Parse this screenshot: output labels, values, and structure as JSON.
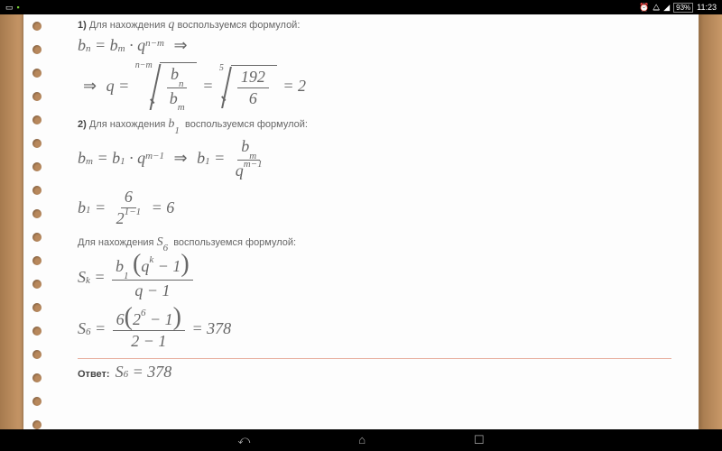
{
  "status": {
    "time": "11:23",
    "battery": "93%"
  },
  "colors": {
    "wood": "#b8885c",
    "paper": "#fdfdfd",
    "text": "#666",
    "hr": "#e8b0a0"
  },
  "step1": {
    "num": "1)",
    "text_a": "Для нахождения",
    "var": "q",
    "text_b": "воспользуемся формулой:"
  },
  "eq1": {
    "lhs_base": "b",
    "lhs_sub": "n",
    "rhs_base": "b",
    "rhs_sub": "m",
    "q": "q",
    "exp": "n−m"
  },
  "eq2": {
    "q": "q",
    "root_index": "n−m",
    "frac_num_base": "b",
    "frac_num_sub": "n",
    "frac_den_base": "b",
    "frac_den_sub": "m",
    "root2_index": "5",
    "root2_num": "192",
    "root2_den": "6",
    "result": "2"
  },
  "step2": {
    "num": "2)",
    "text_a": "Для нахождения",
    "var_base": "b",
    "var_sub": "1",
    "text_b": "воспользуемся формулой:"
  },
  "eq3": {
    "bm_base": "b",
    "bm_sub": "m",
    "b1_base": "b",
    "b1_sub": "1",
    "q": "q",
    "exp": "m−1",
    "rfrac_num_base": "b",
    "rfrac_num_sub": "m",
    "rfrac_den_q": "q",
    "rfrac_den_exp": "m−1"
  },
  "eq4": {
    "lhs_base": "b",
    "lhs_sub": "1",
    "num": "6",
    "den_base": "2",
    "den_exp": "1−1",
    "result": "6"
  },
  "step3": {
    "text_a": "Для нахождения",
    "var_base": "S",
    "var_sub": "6",
    "text_b": "воспользуемся формулой:"
  },
  "eq5": {
    "S": "S",
    "S_sub": "k",
    "num_b": "b",
    "num_b_sub": "1",
    "num_q": "q",
    "num_q_sup": "k",
    "num_minus": "− 1",
    "den_q": "q",
    "den_minus": "− 1"
  },
  "eq6": {
    "S": "S",
    "S_sub": "6",
    "num_coef": "6",
    "num_base": "2",
    "num_exp": "6",
    "num_minus": "− 1",
    "den": "2 − 1",
    "result": "378"
  },
  "answer": {
    "label": "Ответ:",
    "S": "S",
    "S_sub": "6",
    "val": "378"
  }
}
